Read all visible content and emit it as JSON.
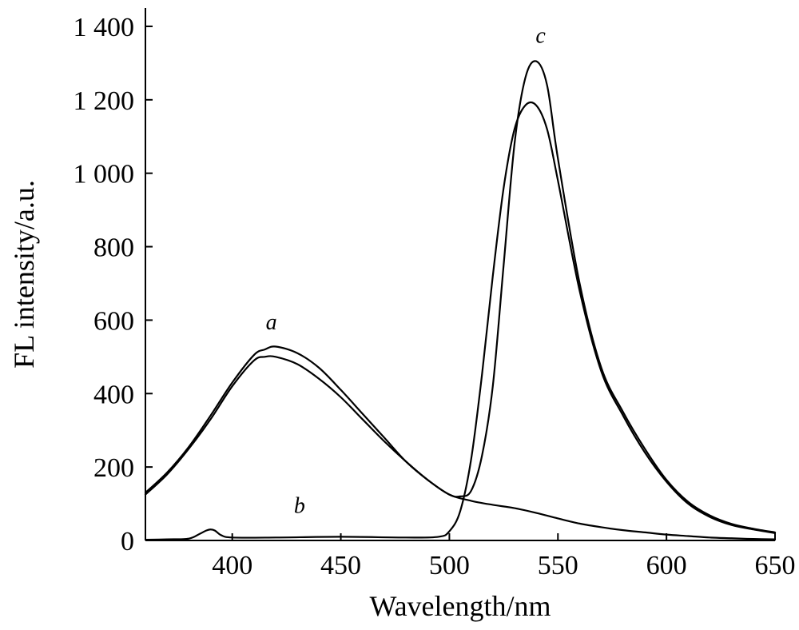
{
  "chart_data": {
    "type": "line",
    "xlabel": "Wavelength/nm",
    "ylabel": "FL intensity/a.u.",
    "xlim": [
      360,
      650
    ],
    "ylim": [
      0,
      1450
    ],
    "xticks": [
      400,
      450,
      500,
      550,
      600,
      650
    ],
    "xtick_labels": [
      "400",
      "450",
      "500",
      "550",
      "600",
      "650"
    ],
    "yticks": [
      0,
      200,
      400,
      600,
      800,
      1000,
      1200,
      1400
    ],
    "ytick_labels": [
      "0",
      "200",
      "400",
      "600",
      "800",
      "1 000",
      "1 200",
      "1 400"
    ],
    "grid": false,
    "annotations": [
      {
        "text": "a",
        "x": 418,
        "y": 575
      },
      {
        "text": "b",
        "x": 431,
        "y": 75
      },
      {
        "text": "c",
        "x": 542,
        "y": 1355
      }
    ],
    "series": [
      {
        "x": [
          360,
          370,
          380,
          390,
          400,
          410,
          415,
          420,
          430,
          440,
          450,
          460,
          470,
          480,
          490,
          500,
          510,
          520,
          530,
          540,
          550,
          560,
          570,
          580,
          590,
          600,
          610,
          620,
          630,
          640,
          650
        ],
        "values": [
          125,
          180,
          250,
          330,
          420,
          490,
          500,
          500,
          480,
          440,
          390,
          330,
          270,
          215,
          165,
          125,
          108,
          97,
          88,
          75,
          60,
          46,
          36,
          28,
          22,
          16,
          12,
          8,
          6,
          4,
          3
        ]
      },
      {
        "x": [
          360,
          370,
          380,
          390,
          400,
          410,
          415,
          420,
          430,
          440,
          450,
          460,
          470,
          480,
          490,
          500,
          505,
          510,
          515,
          520,
          525,
          530,
          535,
          540,
          545,
          550,
          560,
          570,
          580,
          590,
          600,
          610,
          620,
          630,
          640,
          650
        ],
        "values": [
          130,
          185,
          255,
          340,
          430,
          505,
          520,
          528,
          510,
          470,
          410,
          345,
          280,
          215,
          165,
          125,
          120,
          135,
          230,
          420,
          750,
          1080,
          1260,
          1305,
          1240,
          1040,
          700,
          470,
          350,
          250,
          165,
          105,
          68,
          45,
          32,
          22
        ]
      },
      {
        "x": [
          360,
          370,
          380,
          385,
          388,
          390,
          392,
          395,
          400,
          420,
          450,
          480,
          495,
          500,
          505,
          510,
          515,
          520,
          525,
          530,
          535,
          540,
          545,
          550,
          560,
          570,
          580,
          590,
          600,
          610,
          620,
          630,
          640,
          650
        ],
        "values": [
          2,
          3,
          5,
          18,
          27,
          30,
          27,
          14,
          8,
          8,
          10,
          8,
          10,
          25,
          80,
          220,
          450,
          720,
          960,
          1120,
          1185,
          1185,
          1120,
          980,
          680,
          460,
          340,
          240,
          160,
          100,
          64,
          42,
          30,
          20
        ]
      }
    ]
  }
}
